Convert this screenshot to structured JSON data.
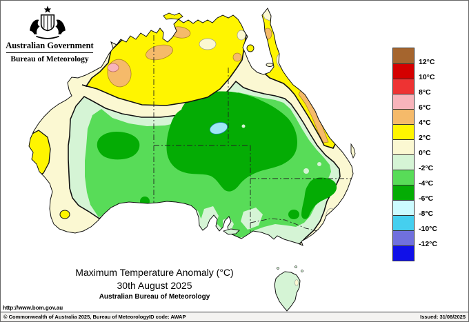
{
  "header": {
    "gov_title": "Australian Government",
    "bureau": "Bureau of Meteorology"
  },
  "title": {
    "line1": "Maximum Temperature Anomaly (°C)",
    "line2": "30th August 2025",
    "line3": "Australian Bureau of Meteorology"
  },
  "legend": {
    "labels": [
      "12°C",
      "10°C",
      "8°C",
      "6°C",
      "4°C",
      "2°C",
      "0°C",
      "-2°C",
      "-4°C",
      "-6°C",
      "-8°C",
      "-10°C",
      "-12°C"
    ],
    "colors": [
      "#A5652E",
      "#D40000",
      "#EE3333",
      "#F8B4BB",
      "#F5BA6A",
      "#FFF500",
      "#FBF8D2",
      "#D5F4D5",
      "#58DC58",
      "#04AC04",
      "#CCFBFF",
      "#45CFEF",
      "#7070DE",
      "#1010E8"
    ],
    "top_cell_style": "hatched"
  },
  "footer": {
    "url": "http://www.bom.gov.au",
    "copyright": "© Commonwealth of Australia 2025, Bureau of Meteorology",
    "id_code": "ID code: AWAP",
    "issued": "Issued: 31/08/2025"
  },
  "map_data": {
    "type": "filled-contour-map",
    "region": "Australia",
    "variable": "Maximum Temperature Anomaly",
    "unit": "°C",
    "date": "30th August 2025",
    "scale": {
      "min": -12,
      "max": 12,
      "interval": 2
    },
    "lake_color": "#9FE7F5",
    "features": [
      {
        "area": "Central Australia interior (NT/SA/QLD)",
        "anomaly": "-6 to -4"
      },
      {
        "area": "Lake Eyre region patch",
        "anomaly": "-8 to -6 (lake shown cyan)"
      },
      {
        "area": "Most of interior, south and east",
        "anomaly": "-4 to -2"
      },
      {
        "area": "Victoria, Tasmania, coastal NSW/QLD fringe",
        "anomaly": "-2 to 0"
      },
      {
        "area": "Coastal west, southwest and Gulf fringe",
        "anomaly": "0 to +2"
      },
      {
        "area": "Kimberley, Top End, Gulf rim, Cape York, NE QLD coast",
        "anomaly": "+2 to +4"
      },
      {
        "area": "Victoria River, Top End, Kimberley and NE QLD coastal patches",
        "anomaly": "+4 to +6"
      },
      {
        "area": "West Kimberley small spot",
        "anomaly": "+6 to +8"
      }
    ]
  }
}
